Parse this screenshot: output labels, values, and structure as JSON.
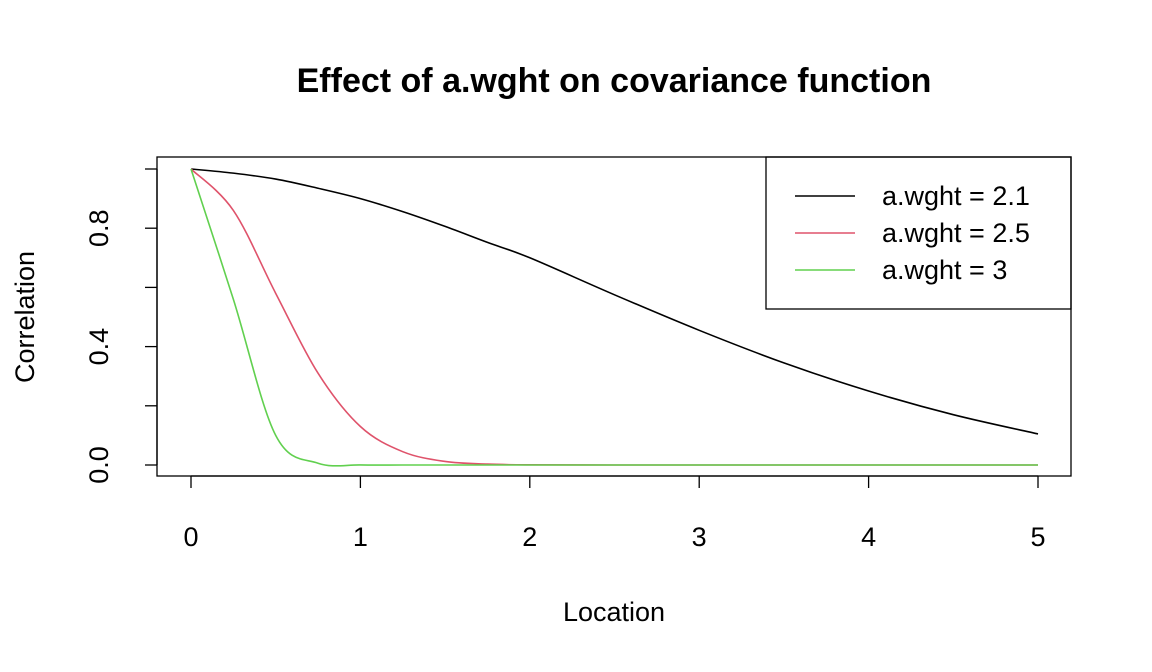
{
  "chart_data": {
    "type": "line",
    "title": "Effect of a.wght on covariance function",
    "xlabel": "Location",
    "ylabel": "Correlation",
    "xlim": [
      0,
      5
    ],
    "ylim": [
      0,
      1
    ],
    "x_ticks": [
      0,
      1,
      2,
      3,
      4,
      5
    ],
    "x_tick_labels": [
      "0",
      "1",
      "2",
      "3",
      "4",
      "5"
    ],
    "y_ticks": [
      0,
      0.2,
      0.4,
      0.6,
      0.8,
      1.0
    ],
    "y_tick_labels": [
      "0.0",
      "",
      "0.4",
      "",
      "0.8",
      ""
    ],
    "grid": false,
    "legend_position": "top-right",
    "x": [
      0,
      0.25,
      0.5,
      0.75,
      1,
      1.25,
      1.5,
      1.75,
      2,
      2.5,
      3,
      3.5,
      4,
      4.5,
      5
    ],
    "series": [
      {
        "name": "a.wght = 2.1",
        "color": "#000000",
        "values": [
          1.0,
          0.986,
          0.966,
          0.935,
          0.9,
          0.856,
          0.806,
          0.752,
          0.7,
          0.575,
          0.455,
          0.345,
          0.25,
          0.17,
          0.105
        ]
      },
      {
        "name": "a.wght = 2.5",
        "color": "#DF536B",
        "values": [
          1.0,
          0.86,
          0.58,
          0.31,
          0.13,
          0.045,
          0.012,
          0.003,
          0.0005,
          0.0,
          0.0,
          0.0,
          0.0,
          0.0,
          0.0
        ]
      },
      {
        "name": "a.wght = 3",
        "color": "#61D04F",
        "values": [
          1.0,
          0.56,
          0.1,
          0.006,
          0.0002,
          0.0,
          0.0,
          0.0,
          0.0,
          0.0,
          0.0,
          0.0,
          0.0,
          0.0,
          0.0
        ]
      }
    ]
  }
}
